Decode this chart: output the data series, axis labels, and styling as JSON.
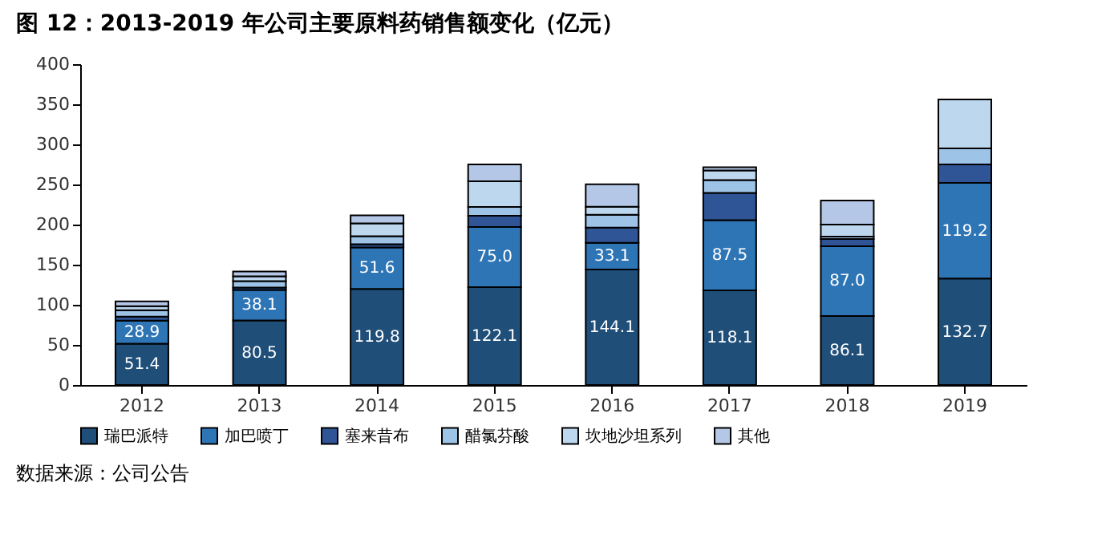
{
  "chart_data": {
    "type": "bar",
    "stacked": true,
    "title": "图 12：2013-2019 年公司主要原料药销售额变化（亿元）",
    "categories": [
      "2012",
      "2013",
      "2014",
      "2015",
      "2016",
      "2017",
      "2018",
      "2019"
    ],
    "series": [
      {
        "name": "瑞巴派特",
        "color": "#1f4e79",
        "values": [
          51.4,
          80.5,
          119.8,
          122.1,
          144.1,
          118.1,
          86.1,
          132.7
        ],
        "value_labels": [
          "51.4",
          "80.5",
          "119.8",
          "122.1",
          "144.1",
          "118.1",
          "86.1",
          "132.7"
        ]
      },
      {
        "name": "加巴喷丁",
        "color": "#2e75b6",
        "values": [
          28.9,
          38.1,
          51.6,
          75.0,
          33.1,
          87.5,
          87.0,
          119.2
        ],
        "value_labels": [
          "28.9",
          "38.1",
          "51.6",
          "75.0",
          "33.1",
          "87.5",
          "87.0",
          "119.2"
        ]
      },
      {
        "name": "塞来昔布",
        "color": "#2f5597",
        "values": [
          5,
          3,
          4,
          14,
          19,
          34,
          9,
          23
        ]
      },
      {
        "name": "醋氯芬酸",
        "color": "#9dc3e6",
        "values": [
          8,
          8,
          10,
          11,
          16,
          16,
          3,
          20
        ]
      },
      {
        "name": "坎地沙坦系列",
        "color": "#bdd7ee",
        "values": [
          5,
          6,
          16,
          32,
          10,
          12,
          15,
          61
        ]
      },
      {
        "name": "其他",
        "color": "#b4c7e7",
        "values": [
          6,
          6,
          10,
          21,
          28,
          4,
          30,
          null
        ]
      }
    ],
    "ylim": [
      0,
      400
    ],
    "yticks": [
      0,
      50,
      100,
      150,
      200,
      250,
      300,
      350,
      400
    ],
    "grid": false,
    "legend": "bottom",
    "annotations": [
      "数据来源：公司公告"
    ]
  }
}
